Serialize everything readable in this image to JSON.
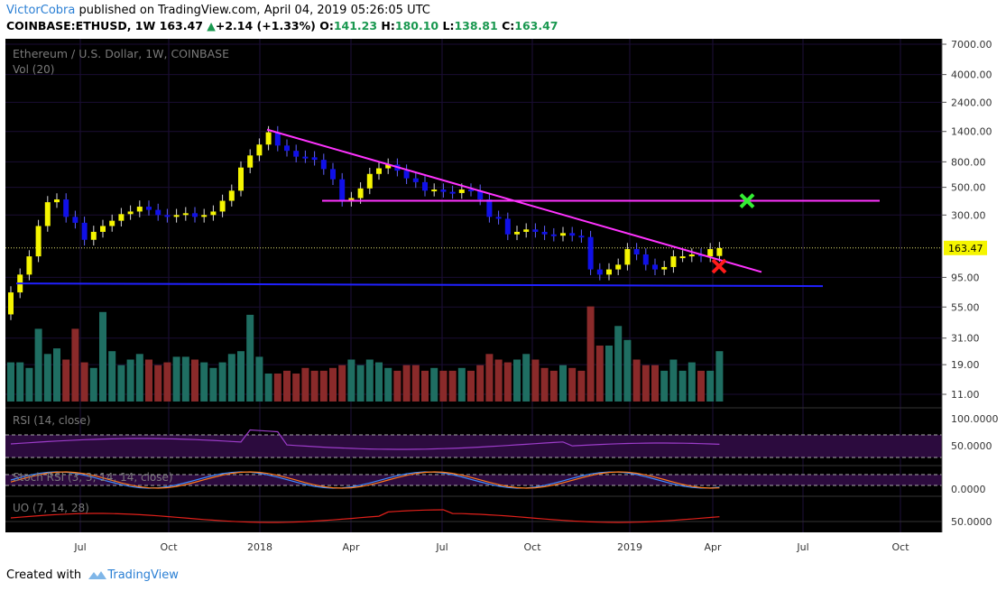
{
  "header": {
    "author": "VictorCobra",
    "published_text": "published on TradingView.com, April 04, 2019 05:26:05 UTC",
    "symbol": "COINBASE:ETHUSD, 1W",
    "last": "163.47",
    "change": "+2.14 (+1.33%)",
    "open_label": "O:",
    "open": "141.23",
    "high_label": "H:",
    "high": "180.10",
    "low_label": "L:",
    "low": "138.81",
    "close_label": "C:",
    "close": "163.47"
  },
  "footer": {
    "created_with": "Created with",
    "brand": "TradingView"
  },
  "chart_data": {
    "type": "candlestick",
    "title": "Ethereum / U.S. Dollar, 1W, COINBASE",
    "volume_label": "Vol (20)",
    "price_scale": "log",
    "price_ticks": [
      7000,
      4000,
      2400,
      1400,
      800,
      500,
      300,
      163.47,
      95,
      55,
      31,
      19,
      11
    ],
    "price_tick_labels": [
      "7000.00",
      "4000.00",
      "2400.00",
      "1400.00",
      "800.00",
      "500.00",
      "300.00",
      "163.47",
      "95.00",
      "55.00",
      "31.00",
      "19.00",
      "11.00"
    ],
    "last_price": 163.47,
    "x_labels": [
      "Jul",
      "Oct",
      "2018",
      "Apr",
      "Jul",
      "Oct",
      "2019",
      "Apr",
      "Jul",
      "Oct"
    ],
    "weekly_close": [
      72,
      100,
      140,
      245,
      380,
      400,
      290,
      260,
      190,
      220,
      245,
      270,
      305,
      320,
      350,
      330,
      300,
      290,
      300,
      310,
      290,
      300,
      320,
      390,
      470,
      720,
      900,
      1100,
      1380,
      1080,
      980,
      880,
      870,
      830,
      700,
      580,
      390,
      410,
      490,
      640,
      710,
      760,
      680,
      590,
      550,
      470,
      480,
      460,
      450,
      480,
      470,
      400,
      290,
      280,
      210,
      220,
      230,
      220,
      210,
      205,
      215,
      205,
      200,
      110,
      100,
      110,
      120,
      160,
      145,
      120,
      110,
      115,
      140,
      140,
      145,
      140,
      160,
      163
    ],
    "weekly_open": [
      48,
      72,
      100,
      140,
      245,
      380,
      400,
      290,
      260,
      190,
      220,
      245,
      270,
      305,
      320,
      350,
      330,
      300,
      290,
      300,
      310,
      290,
      300,
      320,
      390,
      470,
      720,
      900,
      1100,
      1380,
      1080,
      980,
      880,
      870,
      830,
      700,
      580,
      390,
      410,
      490,
      640,
      710,
      760,
      680,
      590,
      550,
      470,
      480,
      460,
      450,
      480,
      470,
      400,
      290,
      280,
      210,
      220,
      230,
      220,
      210,
      205,
      215,
      205,
      200,
      110,
      100,
      110,
      120,
      160,
      145,
      120,
      110,
      115,
      140,
      140,
      145,
      140,
      141
    ],
    "volume": [
      14,
      14,
      12,
      26,
      17,
      19,
      15,
      26,
      14,
      12,
      32,
      18,
      13,
      15,
      17,
      15,
      13,
      14,
      16,
      16,
      15,
      14,
      12,
      14,
      17,
      18,
      31,
      16,
      10,
      10,
      11,
      10,
      12,
      11,
      11,
      12,
      13,
      15,
      13,
      15,
      14,
      12,
      11,
      13,
      13,
      11,
      12,
      11,
      11,
      12,
      11,
      13,
      17,
      15,
      14,
      15,
      17,
      15,
      12,
      11,
      13,
      12,
      11,
      34,
      20,
      20,
      27,
      22,
      15,
      13,
      13,
      11,
      15,
      11,
      14,
      11,
      11,
      18
    ],
    "annotations": {
      "horizontal_resistance": 390,
      "horizontal_support": 85,
      "descending_trendline": [
        1450,
        105
      ]
    },
    "rsi": {
      "label": "RSI (14, close)",
      "ticks": [
        "100.0000",
        "50.0000"
      ]
    },
    "stoch_rsi": {
      "label": "Stoch RSI (3, 3, 14, 14, close)",
      "ticks": [
        "0.0000"
      ]
    },
    "uo": {
      "label": "UO (7, 14, 28)",
      "ticks": [
        "50.0000"
      ]
    }
  }
}
